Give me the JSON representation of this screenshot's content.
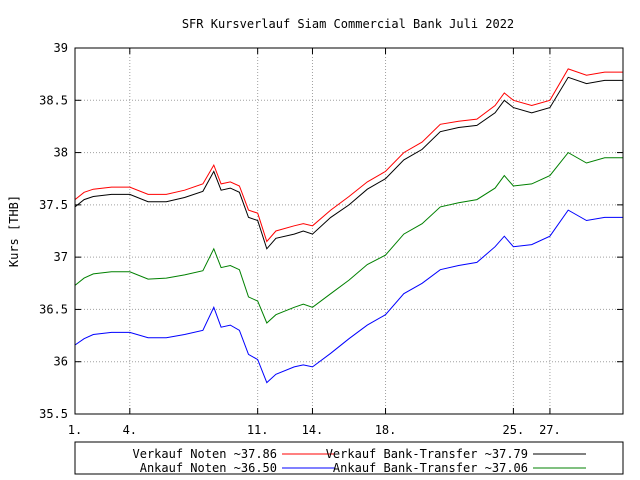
{
  "chart_data": {
    "type": "line",
    "title": "SFR Kursverlauf Siam Commercial Bank Juli 2022",
    "xlabel": "",
    "ylabel": "Kurs [THB]",
    "ylim": [
      35.5,
      39
    ],
    "xlim": [
      1,
      31
    ],
    "yticks": [
      35.5,
      36,
      36.5,
      37,
      37.5,
      38,
      38.5,
      39
    ],
    "ytick_labels": [
      "35.5",
      "36",
      "36.5",
      "37",
      "37.5",
      "38",
      "38.5",
      "39"
    ],
    "xticks": [
      1,
      4,
      11,
      14,
      18,
      25,
      27
    ],
    "xtick_labels": [
      "1.",
      "4.",
      "11.",
      "14.",
      "18.",
      "25.",
      "27."
    ],
    "grid": true,
    "legend_position": "bottom",
    "series": [
      {
        "name": "Verkauf Noten ~37.86",
        "color": "#ff0000",
        "x": [
          1,
          1.5,
          2,
          3,
          4,
          5,
          6,
          7,
          8,
          8.6,
          9,
          9.5,
          10,
          10.5,
          11,
          11.5,
          12,
          13,
          13.5,
          14,
          15,
          16,
          17,
          18,
          19,
          20,
          21,
          22,
          23,
          24,
          24.5,
          25,
          26,
          27,
          28,
          29,
          30,
          31
        ],
        "values": [
          37.55,
          37.62,
          37.65,
          37.67,
          37.67,
          37.6,
          37.6,
          37.64,
          37.7,
          37.88,
          37.7,
          37.72,
          37.68,
          37.45,
          37.42,
          37.15,
          37.25,
          37.3,
          37.32,
          37.3,
          37.45,
          37.58,
          37.72,
          37.82,
          38.0,
          38.1,
          38.27,
          38.3,
          38.32,
          38.45,
          38.57,
          38.5,
          38.45,
          38.5,
          38.8,
          38.74,
          38.77,
          38.77
        ]
      },
      {
        "name": "Ankauf Noten ~36.50",
        "color": "#0000ff",
        "x": [
          1,
          1.5,
          2,
          3,
          4,
          5,
          6,
          7,
          8,
          8.6,
          9,
          9.5,
          10,
          10.5,
          11,
          11.5,
          12,
          13,
          13.5,
          14,
          15,
          16,
          17,
          18,
          19,
          20,
          21,
          22,
          23,
          24,
          24.5,
          25,
          26,
          27,
          28,
          29,
          30,
          31
        ],
        "values": [
          36.16,
          36.22,
          36.26,
          36.28,
          36.28,
          36.23,
          36.23,
          36.26,
          36.3,
          36.52,
          36.33,
          36.35,
          36.3,
          36.07,
          36.02,
          35.8,
          35.88,
          35.95,
          35.97,
          35.95,
          36.08,
          36.22,
          36.35,
          36.45,
          36.65,
          36.75,
          36.88,
          36.92,
          36.95,
          37.1,
          37.2,
          37.1,
          37.12,
          37.2,
          37.45,
          37.35,
          37.38,
          37.38
        ]
      },
      {
        "name": "Verkauf Bank-Transfer ~37.79",
        "color": "#000000",
        "x": [
          1,
          1.5,
          2,
          3,
          4,
          5,
          6,
          7,
          8,
          8.6,
          9,
          9.5,
          10,
          10.5,
          11,
          11.5,
          12,
          13,
          13.5,
          14,
          15,
          16,
          17,
          18,
          19,
          20,
          21,
          22,
          23,
          24,
          24.5,
          25,
          26,
          27,
          28,
          29,
          30,
          31
        ],
        "values": [
          37.48,
          37.55,
          37.58,
          37.6,
          37.6,
          37.53,
          37.53,
          37.57,
          37.63,
          37.82,
          37.64,
          37.66,
          37.62,
          37.38,
          37.35,
          37.08,
          37.18,
          37.22,
          37.25,
          37.22,
          37.38,
          37.5,
          37.65,
          37.75,
          37.93,
          38.03,
          38.2,
          38.24,
          38.26,
          38.38,
          38.5,
          38.43,
          38.38,
          38.43,
          38.72,
          38.66,
          38.69,
          38.69
        ]
      },
      {
        "name": "Ankauf Bank-Transfer ~37.06",
        "color": "#008000",
        "x": [
          1,
          1.5,
          2,
          3,
          4,
          5,
          6,
          7,
          8,
          8.6,
          9,
          9.5,
          10,
          10.5,
          11,
          11.5,
          12,
          13,
          13.5,
          14,
          15,
          16,
          17,
          18,
          19,
          20,
          21,
          22,
          23,
          24,
          24.5,
          25,
          26,
          27,
          28,
          29,
          30,
          31
        ],
        "values": [
          36.73,
          36.8,
          36.84,
          36.86,
          36.86,
          36.79,
          36.8,
          36.83,
          36.87,
          37.08,
          36.9,
          36.92,
          36.88,
          36.62,
          36.58,
          36.37,
          36.45,
          36.52,
          36.55,
          36.52,
          36.65,
          36.78,
          36.93,
          37.02,
          37.22,
          37.32,
          37.48,
          37.52,
          37.55,
          37.66,
          37.78,
          37.68,
          37.7,
          37.78,
          38.0,
          37.9,
          37.95,
          37.95
        ]
      }
    ]
  }
}
